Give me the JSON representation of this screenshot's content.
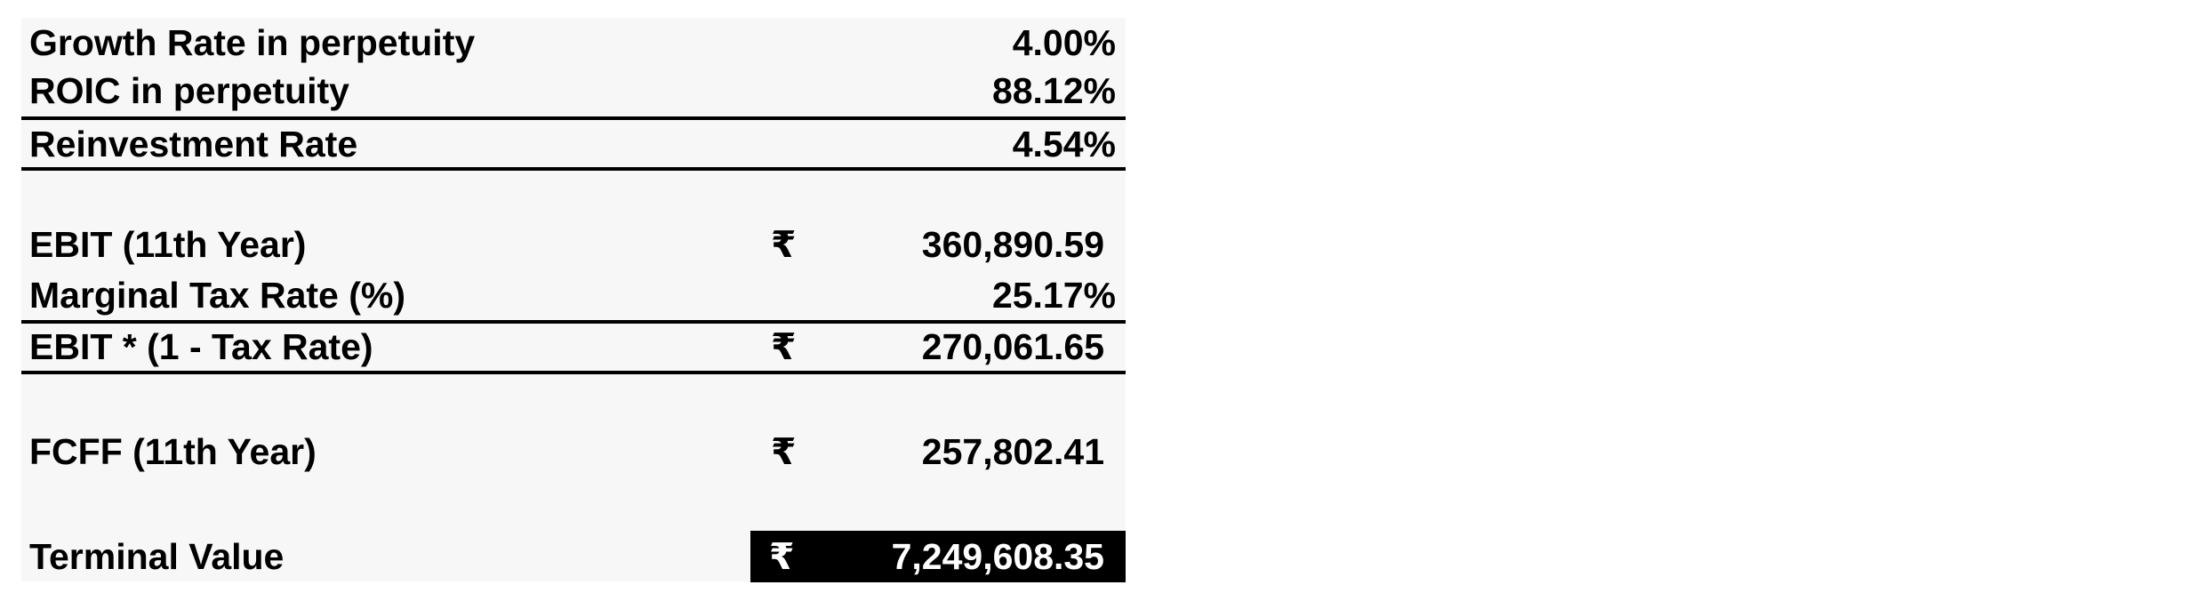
{
  "currency_symbol": "₹",
  "rows": {
    "growth_rate": {
      "label": "Growth Rate in perpetuity",
      "value": "4.00%"
    },
    "roic": {
      "label": "ROIC in perpetuity",
      "value": "88.12%"
    },
    "reinvestment_rate": {
      "label": "Reinvestment Rate",
      "value": "4.54%"
    },
    "ebit": {
      "label": "EBIT (11th Year)",
      "value": "360,890.59"
    },
    "marginal_tax_rate": {
      "label": "Marginal Tax Rate (%)",
      "value": "25.17%"
    },
    "ebit_after_tax": {
      "label": "EBIT * (1 - Tax Rate)",
      "value": "270,061.65"
    },
    "fcff": {
      "label": "FCFF (11th Year)",
      "value": "257,802.41"
    },
    "terminal_value": {
      "label": "Terminal Value",
      "value": "7,249,608.35"
    }
  },
  "colors": {
    "sheet_background": "#f7f7f7",
    "highlight_background": "#000000",
    "highlight_text": "#ffffff"
  }
}
